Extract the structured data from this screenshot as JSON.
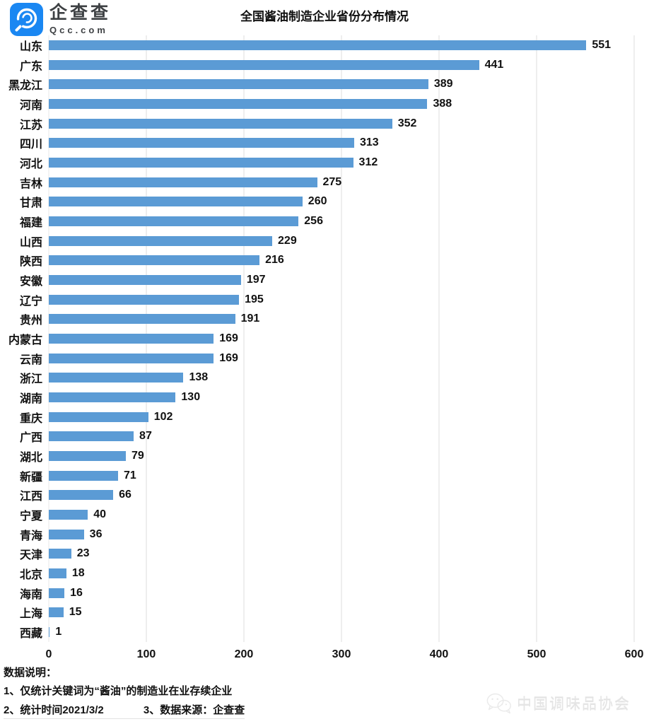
{
  "header": {
    "brand": "企查查",
    "brand_domain": "Qcc.com",
    "logo_color": "#1a87f2",
    "title": "全国酱油制造企业省份分布情况"
  },
  "chart_data": {
    "type": "bar",
    "orientation": "horizontal",
    "title": "全国酱油制造企业省份分布情况",
    "categories": [
      "山东",
      "广东",
      "黑龙江",
      "河南",
      "江苏",
      "四川",
      "河北",
      "吉林",
      "甘肃",
      "福建",
      "山西",
      "陕西",
      "安徽",
      "辽宁",
      "贵州",
      "内蒙古",
      "云南",
      "浙江",
      "湖南",
      "重庆",
      "广西",
      "湖北",
      "新疆",
      "江西",
      "宁夏",
      "青海",
      "天津",
      "北京",
      "海南",
      "上海",
      "西藏"
    ],
    "values": [
      551,
      441,
      389,
      388,
      352,
      313,
      312,
      275,
      260,
      256,
      229,
      216,
      197,
      195,
      191,
      169,
      169,
      138,
      130,
      102,
      87,
      79,
      71,
      66,
      40,
      36,
      23,
      18,
      16,
      15,
      1
    ],
    "xlabel": "",
    "ylabel": "",
    "xlim": [
      0,
      600
    ],
    "x_ticks": [
      0,
      100,
      200,
      300,
      400,
      500,
      600
    ],
    "grid": true,
    "legend": false,
    "value_labels": true,
    "bar_color": "#5B9BD5"
  },
  "footer": {
    "notes_title": "数据说明：",
    "note1": "1、仅统计关键词为“酱油”的制造业在业存续企业",
    "note2": "2、统计时间2021/3/2",
    "note3": "3、数据来源：企查查",
    "watermark_text": "中国调味品协会"
  }
}
